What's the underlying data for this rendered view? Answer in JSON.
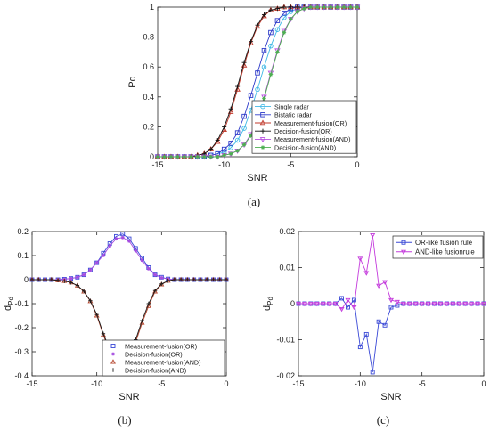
{
  "captions": {
    "a": "(a)",
    "b": "(b)",
    "c": "(c)"
  },
  "chart_data": [
    {
      "type": "line",
      "panel": "a",
      "xlabel": "SNR",
      "ylabel": "Pd",
      "xlim": [
        -15,
        0
      ],
      "ylim": [
        0,
        1
      ],
      "xticks": [
        -15,
        -10,
        -5,
        0
      ],
      "xtick_labels": [
        "-15",
        "-10",
        "-5",
        "0"
      ],
      "yticks": [
        0,
        0.2,
        0.4,
        0.6,
        0.8,
        1
      ],
      "ytick_labels": [
        "0",
        "0.2",
        "0.4",
        "0.6",
        "0.8",
        "1"
      ],
      "grid": false,
      "legend": "bottom-right",
      "x": [
        -15,
        -14.5,
        -14,
        -13.5,
        -13,
        -12.5,
        -12,
        -11.5,
        -11,
        -10.5,
        -10,
        -9.5,
        -9,
        -8.5,
        -8,
        -7.5,
        -7,
        -6.5,
        -6,
        -5.5,
        -5,
        -4.5,
        -4,
        -3.5,
        -3,
        -2.5,
        -2,
        -1.5,
        -1,
        -0.5,
        0
      ],
      "series": [
        {
          "name": "Single radar",
          "color": "#3fb8e6",
          "marker": "circle",
          "values": [
            0,
            0,
            0,
            0,
            0,
            0,
            0,
            0,
            0.01,
            0.02,
            0.03,
            0.06,
            0.11,
            0.19,
            0.31,
            0.45,
            0.6,
            0.74,
            0.85,
            0.93,
            0.97,
            0.99,
            1,
            1,
            1,
            1,
            1,
            1,
            1,
            1,
            1
          ]
        },
        {
          "name": "Bistatic radar",
          "color": "#2d3ac9",
          "marker": "square",
          "values": [
            0,
            0,
            0,
            0,
            0,
            0,
            0,
            0,
            0.01,
            0.02,
            0.05,
            0.09,
            0.16,
            0.27,
            0.41,
            0.56,
            0.71,
            0.83,
            0.91,
            0.96,
            0.99,
            1,
            1,
            1,
            1,
            1,
            1,
            1,
            1,
            1,
            1
          ]
        },
        {
          "name": "Measurement-fusion(OR)",
          "color": "#c0392b",
          "marker": "triangle-up",
          "values": [
            0,
            0,
            0,
            0,
            0,
            0,
            0.01,
            0.02,
            0.05,
            0.1,
            0.18,
            0.3,
            0.45,
            0.61,
            0.76,
            0.87,
            0.94,
            0.98,
            0.99,
            1,
            1,
            1,
            1,
            1,
            1,
            1,
            1,
            1,
            1,
            1,
            1
          ]
        },
        {
          "name": "Decision-fusion(OR)",
          "color": "#111111",
          "marker": "plus",
          "values": [
            0,
            0,
            0,
            0,
            0,
            0,
            0.01,
            0.02,
            0.05,
            0.11,
            0.2,
            0.32,
            0.47,
            0.63,
            0.77,
            0.88,
            0.95,
            0.98,
            0.99,
            1,
            1,
            1,
            1,
            1,
            1,
            1,
            1,
            1,
            1,
            1,
            1
          ]
        },
        {
          "name": "Measurement-fusion(AND)",
          "color": "#b84fe0",
          "marker": "triangle-down",
          "values": [
            0,
            0,
            0,
            0,
            0,
            0,
            0,
            0,
            0,
            0,
            0.01,
            0.02,
            0.04,
            0.08,
            0.15,
            0.26,
            0.4,
            0.56,
            0.71,
            0.84,
            0.92,
            0.97,
            0.99,
            1,
            1,
            1,
            1,
            1,
            1,
            1,
            1
          ]
        },
        {
          "name": "Decision-fusion(AND)",
          "color": "#4caf50",
          "marker": "star",
          "values": [
            0,
            0,
            0,
            0,
            0,
            0,
            0,
            0,
            0,
            0,
            0.01,
            0.02,
            0.04,
            0.08,
            0.14,
            0.25,
            0.39,
            0.55,
            0.7,
            0.83,
            0.92,
            0.97,
            0.99,
            1,
            1,
            1,
            1,
            1,
            1,
            1,
            1
          ]
        }
      ]
    },
    {
      "type": "line",
      "panel": "b",
      "xlabel": "SNR",
      "ylabel": "d",
      "ylabel_sub": "Pd",
      "xlim": [
        -15,
        0
      ],
      "ylim": [
        -0.4,
        0.2
      ],
      "xticks": [
        -15,
        -10,
        -5,
        0
      ],
      "xtick_labels": [
        "-15",
        "-10",
        "-5",
        "0"
      ],
      "yticks": [
        -0.4,
        -0.3,
        -0.2,
        -0.1,
        0,
        0.1,
        0.2
      ],
      "ytick_labels": [
        "-0.4",
        "-0.3",
        "-0.2",
        "-0.1",
        "0",
        "0.1",
        "0.2"
      ],
      "grid": false,
      "legend": "bottom-right",
      "x": [
        -15,
        -14.5,
        -14,
        -13.5,
        -13,
        -12.5,
        -12,
        -11.5,
        -11,
        -10.5,
        -10,
        -9.5,
        -9,
        -8.5,
        -8,
        -7.5,
        -7,
        -6.5,
        -6,
        -5.5,
        -5,
        -4.5,
        -4,
        -3.5,
        -3,
        -2.5,
        -2,
        -1.5,
        -1,
        -0.5,
        0
      ],
      "series": [
        {
          "name": "Measurement-fusion(OR)",
          "color": "#3a49d6",
          "marker": "square",
          "values": [
            0,
            0,
            0,
            0,
            0,
            0.002,
            0.005,
            0.01,
            0.02,
            0.04,
            0.07,
            0.11,
            0.15,
            0.18,
            0.19,
            0.17,
            0.13,
            0.09,
            0.05,
            0.02,
            0.01,
            0.003,
            0,
            0,
            0,
            0,
            0,
            0,
            0,
            0,
            0
          ]
        },
        {
          "name": "Decision-fusion(OR)",
          "color": "#a64de0",
          "marker": "star",
          "values": [
            0,
            0,
            0,
            0,
            0,
            0.002,
            0.005,
            0.01,
            0.02,
            0.04,
            0.07,
            0.1,
            0.14,
            0.17,
            0.175,
            0.16,
            0.12,
            0.08,
            0.045,
            0.02,
            0.008,
            0.003,
            0,
            0,
            0,
            0,
            0,
            0,
            0,
            0,
            0
          ]
        },
        {
          "name": "Measurement-fusion(AND)",
          "color": "#b5452d",
          "marker": "triangle-up",
          "values": [
            0,
            0,
            0,
            0,
            -0.003,
            -0.006,
            -0.012,
            -0.025,
            -0.05,
            -0.09,
            -0.15,
            -0.23,
            -0.3,
            -0.34,
            -0.36,
            -0.33,
            -0.26,
            -0.18,
            -0.11,
            -0.05,
            -0.02,
            -0.005,
            0,
            0,
            0,
            0,
            0,
            0,
            0,
            0,
            0
          ]
        },
        {
          "name": "Decision-fusion(AND)",
          "color": "#1a1a1a",
          "marker": "plus",
          "values": [
            0,
            0,
            0,
            0,
            -0.003,
            -0.006,
            -0.012,
            -0.024,
            -0.048,
            -0.088,
            -0.145,
            -0.225,
            -0.29,
            -0.335,
            -0.35,
            -0.32,
            -0.25,
            -0.17,
            -0.1,
            -0.045,
            -0.018,
            -0.005,
            0,
            0,
            0,
            0,
            0,
            0,
            0,
            0,
            0
          ]
        }
      ]
    },
    {
      "type": "line",
      "panel": "c",
      "xlabel": "SNR",
      "ylabel": "d",
      "ylabel_sub": "Pd",
      "xlim": [
        -15,
        0
      ],
      "ylim": [
        -0.02,
        0.02
      ],
      "xticks": [
        -15,
        -10,
        -5,
        0
      ],
      "xtick_labels": [
        "-15",
        "-10",
        "-5",
        "0"
      ],
      "yticks": [
        -0.02,
        -0.01,
        0,
        0.01,
        0.02
      ],
      "ytick_labels": [
        "-0.02",
        "-0.01",
        "0",
        "0.01",
        "0.02"
      ],
      "grid": false,
      "legend": "top-right",
      "x": [
        -15,
        -14.5,
        -14,
        -13.5,
        -13,
        -12.5,
        -12,
        -11.5,
        -11,
        -10.5,
        -10,
        -9.5,
        -9,
        -8.5,
        -8,
        -7.5,
        -7,
        -6.5,
        -6,
        -5.5,
        -5,
        -4.5,
        -4,
        -3.5,
        -3,
        -2.5,
        -2,
        -1.5,
        -1,
        -0.5,
        0
      ],
      "series": [
        {
          "name": "OR-like fusion rule",
          "color": "#3a49d6",
          "marker": "square",
          "values": [
            0,
            0,
            0,
            0,
            0,
            0,
            0,
            0.0015,
            -0.001,
            0.001,
            -0.012,
            -0.0085,
            -0.019,
            -0.005,
            -0.006,
            -0.001,
            -0.0005,
            0,
            0,
            0,
            0,
            0,
            0,
            0,
            0,
            0,
            0,
            0,
            0,
            0,
            0
          ]
        },
        {
          "name": "AND-like fusionrule",
          "color": "#c43bdc",
          "marker": "triangle-down",
          "values": [
            0,
            0,
            0,
            0,
            0,
            0,
            0,
            -0.0015,
            0.001,
            -0.001,
            0.0125,
            0.0085,
            0.019,
            0.005,
            0.006,
            0.001,
            0.0005,
            0,
            0,
            0,
            0,
            0,
            0,
            0,
            0,
            0,
            0,
            0,
            0,
            0,
            0
          ]
        }
      ]
    }
  ]
}
